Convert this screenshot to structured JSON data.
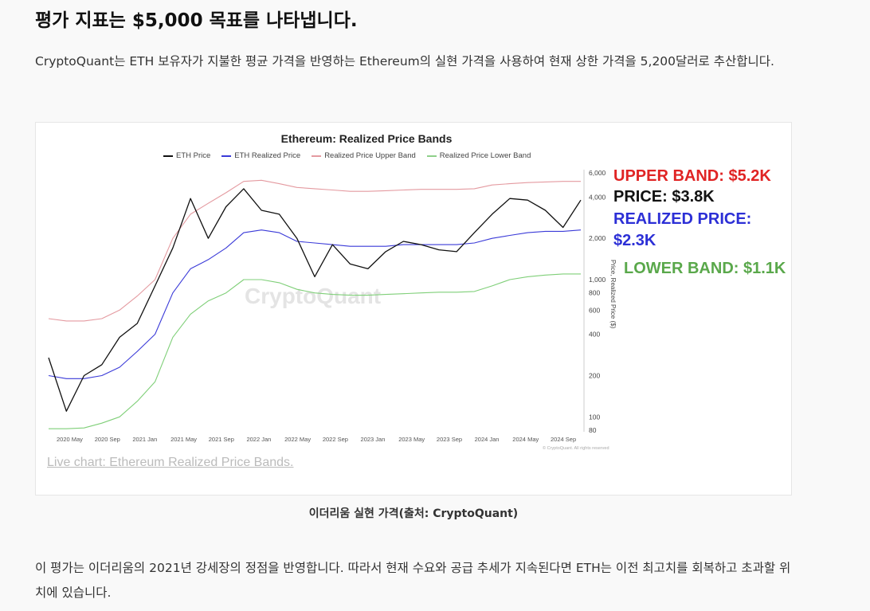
{
  "article": {
    "heading": "평가 지표는 $5,000 목표를 나타냅니다.",
    "paragraph1": "CryptoQuant는 ETH 보유자가 지불한 평균 가격을 반영하는 Ethereum의 실현 가격을 사용하여 현재 상한 가격을 5,200달러로 추산합니다.",
    "caption": "이더리움 실현 가격(출처: CryptoQuant)",
    "paragraph2": "이 평가는 이더리움의 2021년 강세장의 정점을 반영합니다. 따라서 현재 수요와 공급 추세가 지속된다면 ETH는 이전 최고치를 회복하고 초과할 위치에 있습니다."
  },
  "figure": {
    "watermark": "CryptoQuant",
    "live_link": "Live chart: Ethereum Realized Price Bands.",
    "copyright": "© CryptoQuant. All rights reserved",
    "annotations": {
      "upper": "UPPER BAND: $5.2K",
      "price": "PRICE: $3.8K",
      "realized_1": "REALIZED PRICE:",
      "realized_2": "$2.3K",
      "lower": "LOWER BAND: $1.1K"
    },
    "colors": {
      "upper": "#e02424",
      "price": "#111111",
      "realized": "#2c2fd6",
      "lower": "#5aa84b"
    }
  },
  "chart_data": {
    "type": "line",
    "title": "Ethereum: Realized Price Bands",
    "ylabel": "Price, Realized Price ($)",
    "y_scale": "log",
    "ylim": [
      80,
      6000
    ],
    "y_ticks": [
      80,
      100,
      200,
      400,
      600,
      800,
      1000,
      2000,
      4000,
      6000
    ],
    "y_tick_labels": [
      "80",
      "100",
      "200",
      "400",
      "600",
      "800",
      "1,000",
      "2,000",
      "4,000",
      "6,000"
    ],
    "x_tick_labels": [
      "2020 May",
      "2020 Sep",
      "2021 Jan",
      "2021 May",
      "2021 Sep",
      "2022 Jan",
      "2022 May",
      "2022 Sep",
      "2023 Jan",
      "2023 May",
      "2023 Sep",
      "2024 Jan",
      "2024 May",
      "2024 Sep"
    ],
    "x": [
      "2020-02",
      "2020-03",
      "2020-05",
      "2020-07",
      "2020-09",
      "2020-11",
      "2021-01",
      "2021-03",
      "2021-05",
      "2021-07",
      "2021-09",
      "2021-11",
      "2022-01",
      "2022-03",
      "2022-05",
      "2022-06",
      "2022-08",
      "2022-10",
      "2022-12",
      "2023-02",
      "2023-04",
      "2023-06",
      "2023-08",
      "2023-10",
      "2023-12",
      "2024-02",
      "2024-03",
      "2024-05",
      "2024-07",
      "2024-09",
      "2024-11"
    ],
    "series": [
      {
        "name": "ETH Price",
        "values": [
          270,
          110,
          200,
          240,
          380,
          480,
          900,
          1700,
          3900,
          2000,
          3400,
          4600,
          3200,
          3000,
          2000,
          1050,
          1800,
          1300,
          1200,
          1600,
          1900,
          1800,
          1650,
          1600,
          2200,
          3000,
          3900,
          3800,
          3200,
          2400,
          3800
        ]
      },
      {
        "name": "ETH Realized Price",
        "values": [
          200,
          190,
          190,
          200,
          230,
          300,
          400,
          800,
          1200,
          1400,
          1700,
          2200,
          2300,
          2200,
          1900,
          1850,
          1800,
          1750,
          1750,
          1750,
          1800,
          1800,
          1800,
          1800,
          1850,
          2000,
          2100,
          2200,
          2250,
          2250,
          2300
        ]
      },
      {
        "name": "Realized Price Upper Band",
        "values": [
          520,
          500,
          500,
          520,
          600,
          760,
          1000,
          2000,
          3000,
          3600,
          4300,
          5200,
          5300,
          5000,
          4700,
          4600,
          4500,
          4400,
          4400,
          4450,
          4500,
          4550,
          4550,
          4550,
          4600,
          4900,
          5000,
          5100,
          5150,
          5200,
          5200
        ]
      },
      {
        "name": "Realized Price Lower Band",
        "values": [
          82,
          82,
          83,
          90,
          100,
          130,
          180,
          380,
          560,
          700,
          800,
          1000,
          1000,
          950,
          850,
          800,
          780,
          770,
          770,
          780,
          790,
          800,
          810,
          810,
          820,
          900,
          1000,
          1050,
          1080,
          1100,
          1100
        ]
      }
    ]
  }
}
